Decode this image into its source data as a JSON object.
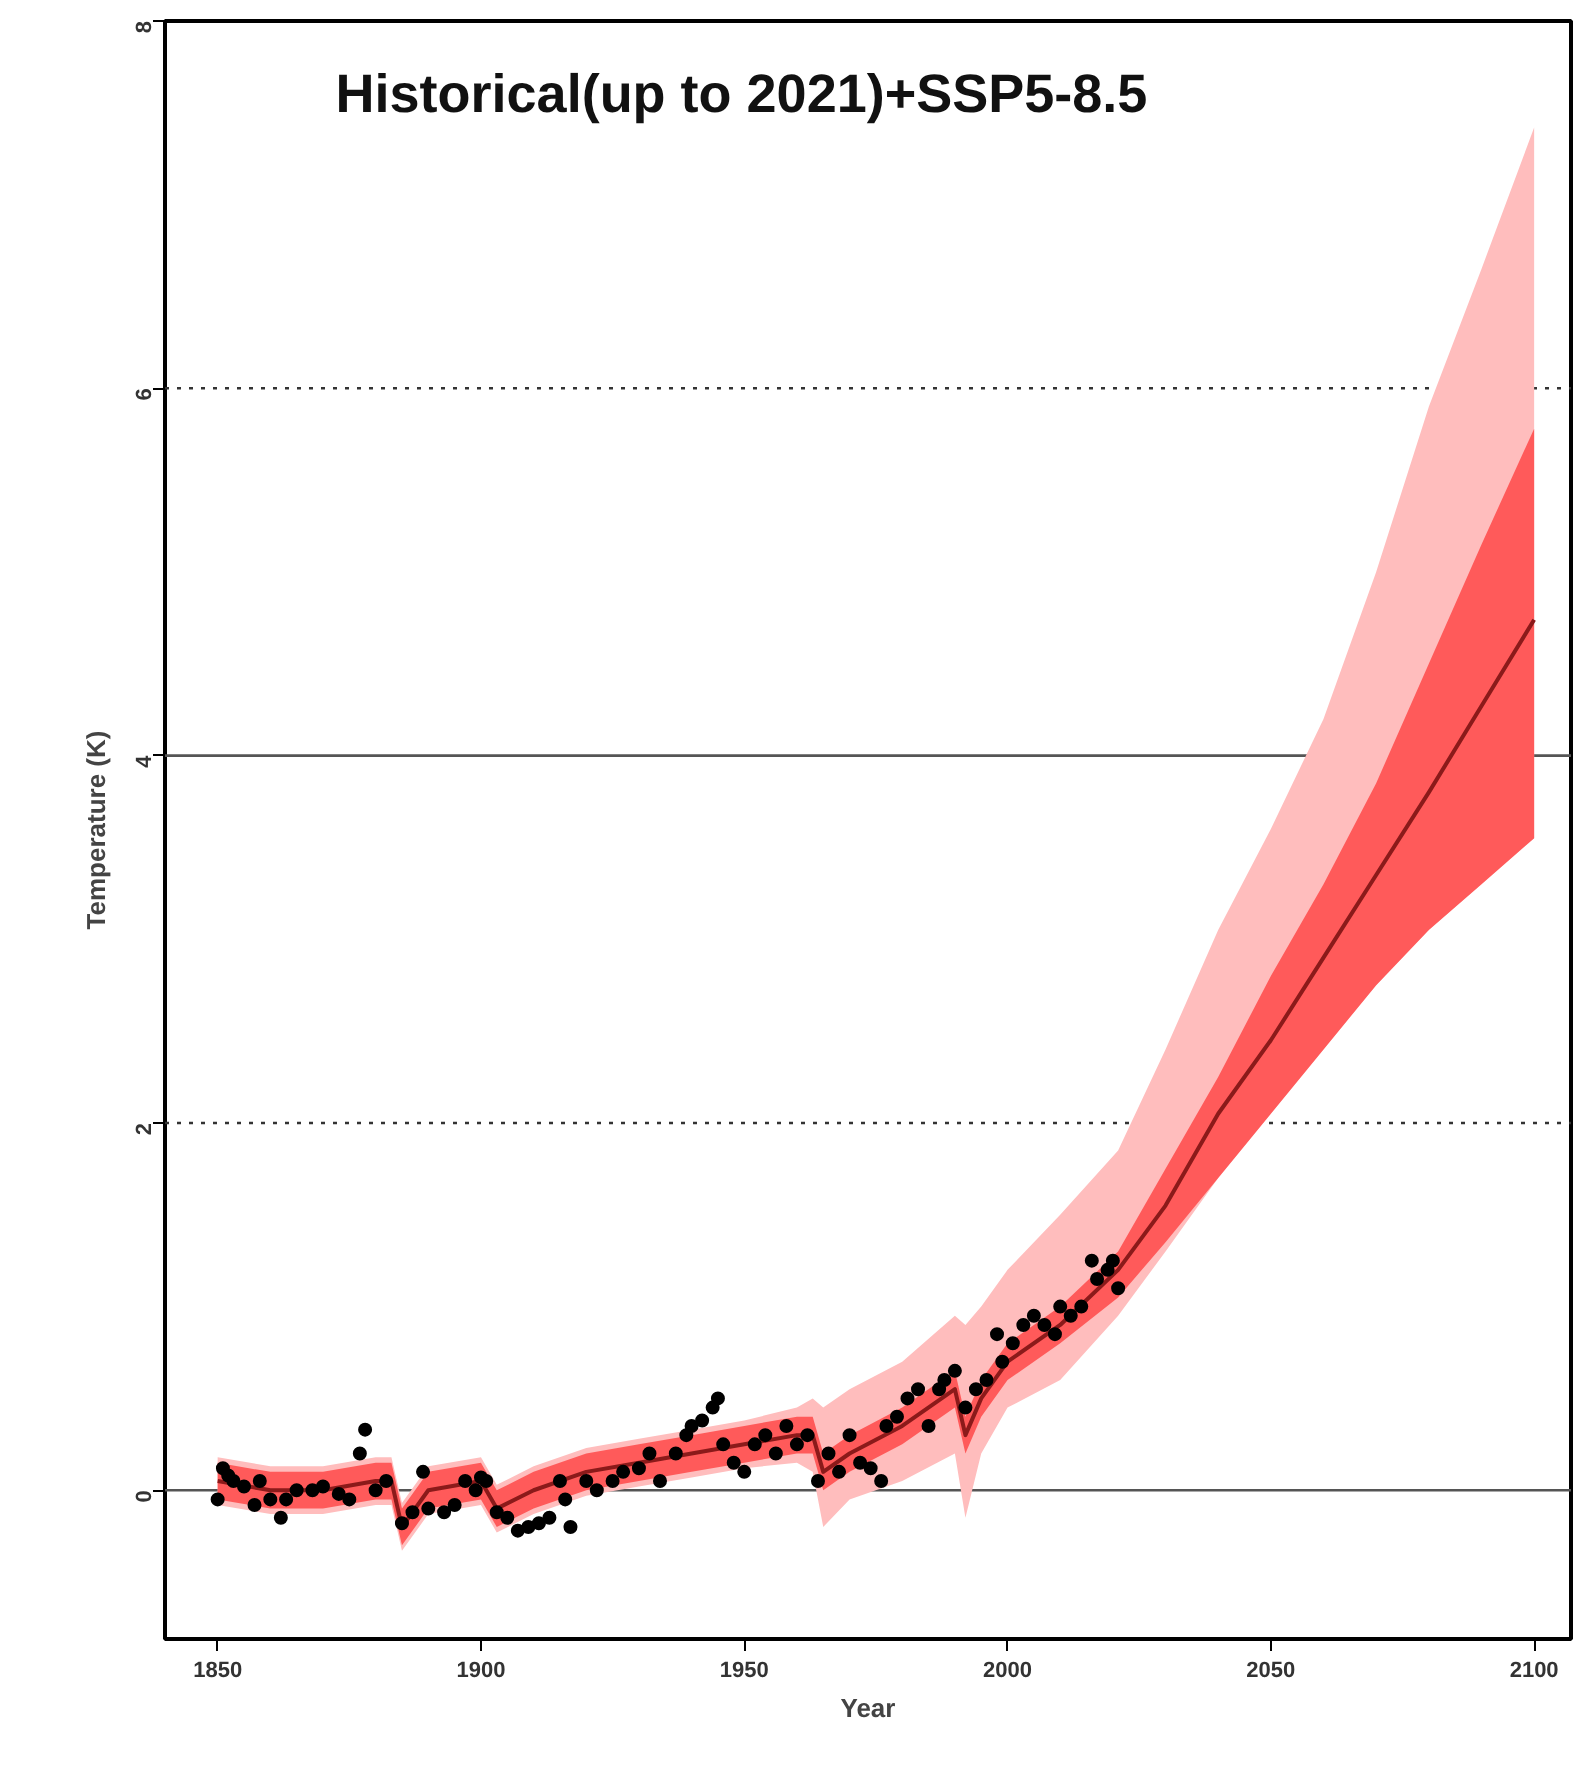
{
  "chart_data": {
    "type": "line",
    "title": "Historical(up to 2021)+SSP5-8.5",
    "xlabel": "Year",
    "ylabel": "Temperature (K)",
    "xlim": [
      1840,
      2107
    ],
    "ylim": [
      -0.81,
      8
    ],
    "xticks": [
      1850,
      1900,
      1950,
      2000,
      2050,
      2100
    ],
    "yticks": [
      0,
      2,
      4,
      6,
      8
    ],
    "x": [
      1850,
      1860,
      1870,
      1880,
      1883,
      1885,
      1890,
      1900,
      1903,
      1910,
      1920,
      1930,
      1940,
      1950,
      1960,
      1963,
      1965,
      1970,
      1980,
      1990,
      1992,
      1995,
      2000,
      2010,
      2021,
      2030,
      2040,
      2050,
      2060,
      2070,
      2080,
      2090,
      2100
    ],
    "series": [
      {
        "color": "#ffbdbd",
        "values": [
          null,
          null,
          null,
          null,
          null,
          null,
          null,
          null,
          null,
          null,
          null,
          null,
          null,
          null,
          null,
          null,
          null,
          null,
          null,
          null,
          null,
          null,
          null,
          null,
          null,
          null,
          null,
          null,
          null,
          null,
          null,
          null,
          null
        ],
        "lower": [
          -0.08,
          -0.13,
          -0.13,
          -0.08,
          -0.08,
          -0.33,
          -0.13,
          -0.08,
          -0.23,
          -0.13,
          -0.03,
          0.02,
          0.07,
          0.12,
          0.15,
          0.1,
          -0.2,
          -0.05,
          0.05,
          0.2,
          -0.15,
          0.2,
          0.45,
          0.6,
          0.95,
          1.3,
          1.7,
          2.05,
          2.4,
          2.75,
          3.05,
          3.3,
          3.55
        ],
        "upper": [
          0.18,
          0.13,
          0.13,
          0.18,
          0.18,
          -0.07,
          0.13,
          0.18,
          0.03,
          0.13,
          0.23,
          0.28,
          0.33,
          0.38,
          0.45,
          0.5,
          0.45,
          0.55,
          0.7,
          0.95,
          0.9,
          1.0,
          1.2,
          1.5,
          1.85,
          2.4,
          3.05,
          3.6,
          4.2,
          5.0,
          5.9,
          6.65,
          7.42
        ]
      },
      {
        "color": "#ff5a5a",
        "values": [
          null,
          null,
          null,
          null,
          null,
          null,
          null,
          null,
          null,
          null,
          null,
          null,
          null,
          null,
          null,
          null,
          null,
          null,
          null,
          null,
          null,
          null,
          null,
          null,
          null,
          null,
          null,
          null,
          null,
          null,
          null,
          null,
          null
        ],
        "lower": [
          -0.05,
          -0.1,
          -0.1,
          -0.05,
          -0.05,
          -0.3,
          -0.1,
          -0.05,
          -0.2,
          -0.1,
          0.0,
          0.05,
          0.1,
          0.15,
          0.2,
          0.2,
          0.0,
          0.1,
          0.25,
          0.45,
          0.2,
          0.4,
          0.6,
          0.8,
          1.05,
          1.35,
          1.7,
          2.05,
          2.4,
          2.75,
          3.05,
          3.3,
          3.55
        ],
        "upper": [
          0.15,
          0.1,
          0.1,
          0.15,
          0.15,
          -0.1,
          0.1,
          0.15,
          0.0,
          0.1,
          0.2,
          0.25,
          0.3,
          0.35,
          0.4,
          0.4,
          0.2,
          0.3,
          0.45,
          0.65,
          0.4,
          0.6,
          0.8,
          1.0,
          1.3,
          1.75,
          2.25,
          2.8,
          3.3,
          3.85,
          4.5,
          5.15,
          5.78
        ]
      },
      {
        "color": "#8b1a1a",
        "values": [
          0.05,
          0.0,
          0.0,
          0.05,
          0.05,
          -0.2,
          0.0,
          0.05,
          -0.1,
          0.0,
          0.1,
          0.15,
          0.2,
          0.25,
          0.3,
          0.3,
          0.1,
          0.2,
          0.35,
          0.55,
          0.3,
          0.5,
          0.7,
          0.9,
          1.2,
          1.55,
          2.05,
          2.45,
          2.9,
          3.35,
          3.8,
          4.27,
          4.74
        ]
      },
      {
        "type": "scatter",
        "color": "#000000",
        "marker": "circle",
        "x": [
          1850,
          1851,
          1852,
          1853,
          1855,
          1857,
          1858,
          1860,
          1862,
          1863,
          1865,
          1868,
          1870,
          1873,
          1875,
          1877,
          1878,
          1880,
          1882,
          1885,
          1887,
          1889,
          1890,
          1893,
          1895,
          1897,
          1899,
          1900,
          1901,
          1903,
          1905,
          1907,
          1909,
          1911,
          1913,
          1915,
          1916,
          1917,
          1920,
          1922,
          1925,
          1927,
          1930,
          1932,
          1934,
          1937,
          1939,
          1940,
          1942,
          1944,
          1945,
          1946,
          1948,
          1950,
          1952,
          1954,
          1956,
          1958,
          1960,
          1962,
          1964,
          1966,
          1968,
          1970,
          1972,
          1974,
          1976,
          1977,
          1979,
          1981,
          1983,
          1985,
          1987,
          1988,
          1990,
          1992,
          1994,
          1996,
          1998,
          1999,
          2001,
          2003,
          2005,
          2007,
          2009,
          2010,
          2012,
          2014,
          2016,
          2017,
          2019,
          2020,
          2021
        ],
        "values": [
          -0.05,
          0.12,
          0.08,
          0.05,
          0.02,
          -0.08,
          0.05,
          -0.05,
          -0.15,
          -0.05,
          0.0,
          0.0,
          0.02,
          -0.02,
          -0.05,
          0.2,
          0.33,
          0.0,
          0.05,
          -0.18,
          -0.12,
          0.1,
          -0.1,
          -0.12,
          -0.08,
          0.05,
          0.0,
          0.07,
          0.05,
          -0.12,
          -0.15,
          -0.22,
          -0.2,
          -0.18,
          -0.15,
          0.05,
          -0.05,
          -0.2,
          0.05,
          0.0,
          0.05,
          0.1,
          0.12,
          0.2,
          0.05,
          0.2,
          0.3,
          0.35,
          0.38,
          0.45,
          0.5,
          0.25,
          0.15,
          0.1,
          0.25,
          0.3,
          0.2,
          0.35,
          0.25,
          0.3,
          0.05,
          0.2,
          0.1,
          0.3,
          0.15,
          0.12,
          0.05,
          0.35,
          0.4,
          0.5,
          0.55,
          0.35,
          0.55,
          0.6,
          0.65,
          0.45,
          0.55,
          0.6,
          0.85,
          0.7,
          0.8,
          0.9,
          0.95,
          0.9,
          0.85,
          1.0,
          0.95,
          1.0,
          1.25,
          1.15,
          1.2,
          1.25,
          1.1
        ]
      }
    ],
    "ref_lines": [
      {
        "axis": "y",
        "value": 0,
        "line_style": "solid",
        "color": "#555555"
      },
      {
        "axis": "y",
        "value": 2,
        "line_style": "dotted",
        "color": "#333333"
      },
      {
        "axis": "y",
        "value": 4,
        "line_style": "solid",
        "color": "#555555"
      },
      {
        "axis": "y",
        "value": 6,
        "line_style": "dotted",
        "color": "#333333"
      }
    ]
  }
}
